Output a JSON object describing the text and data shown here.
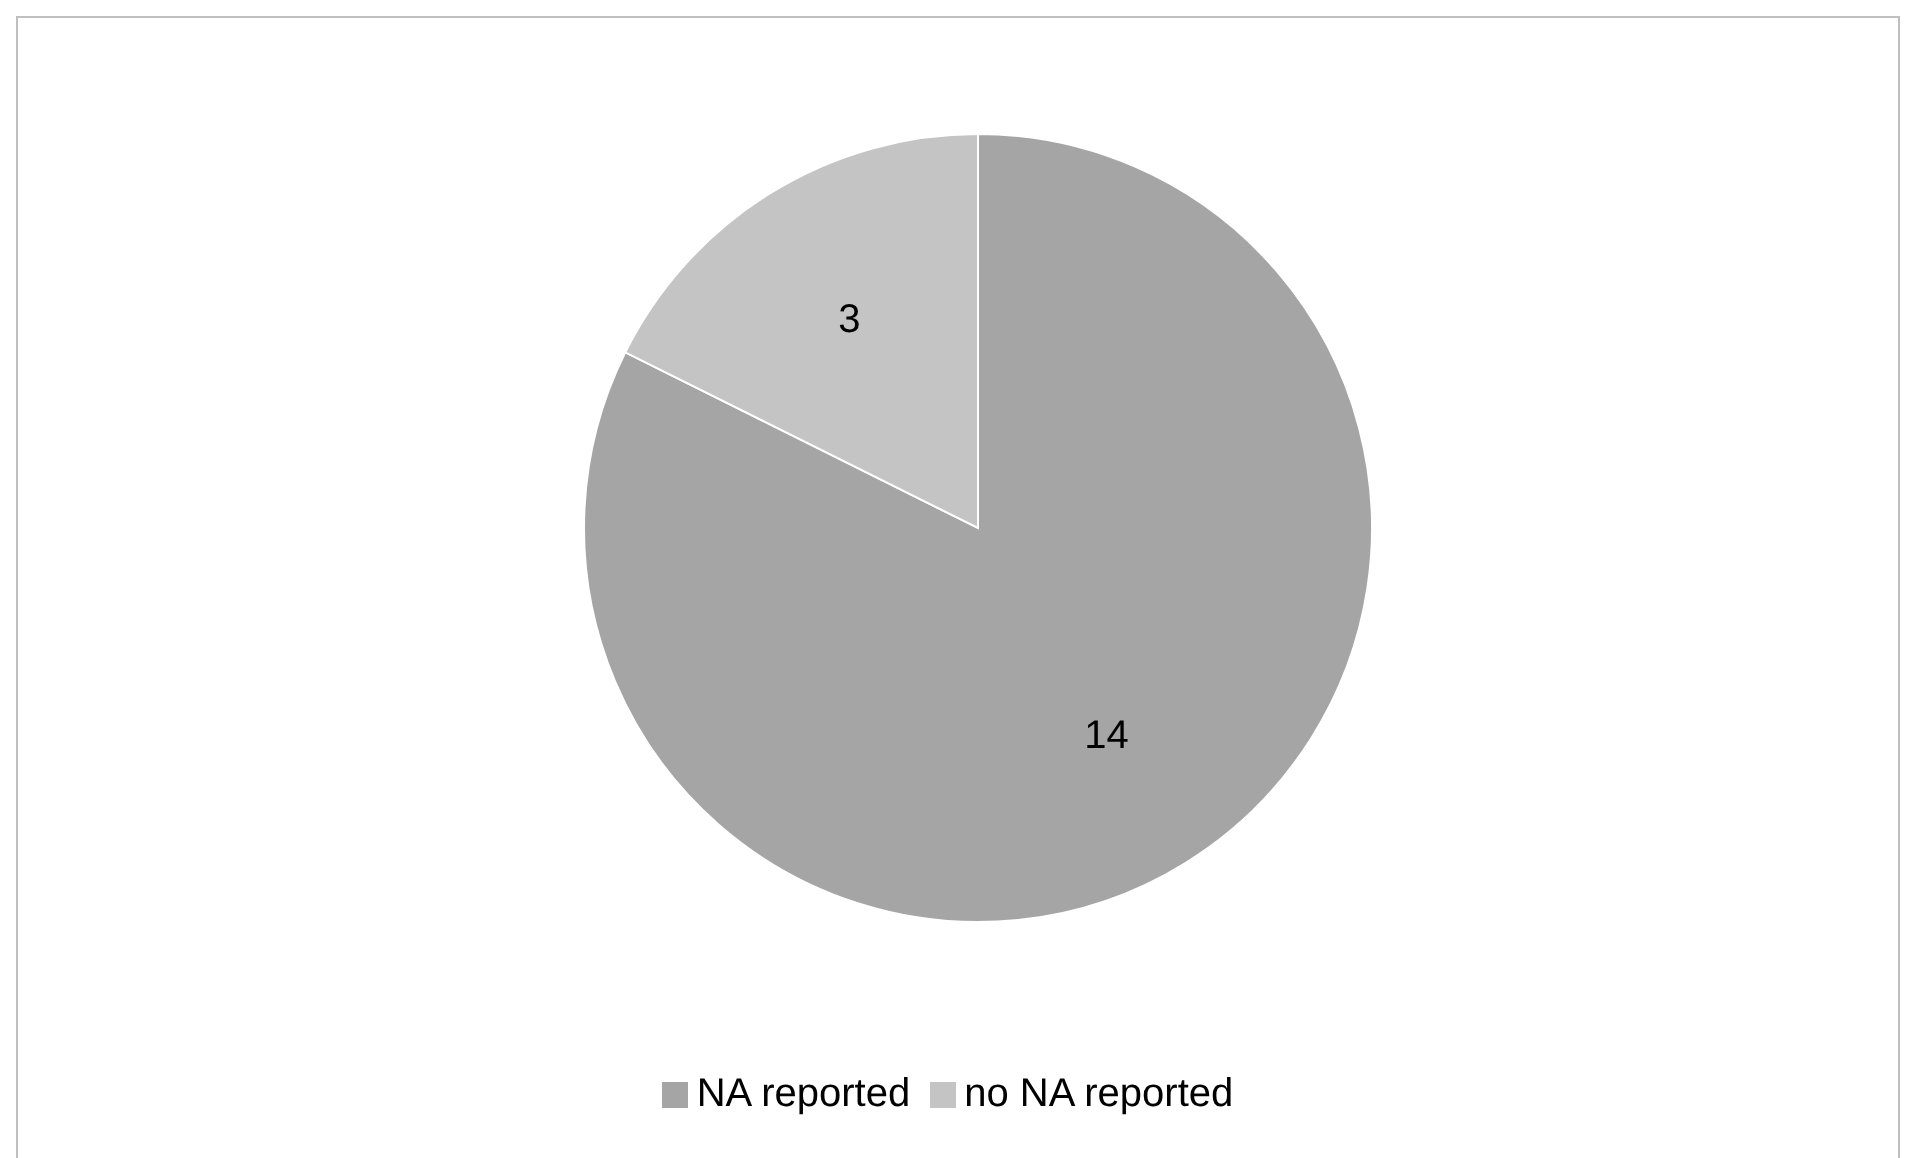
{
  "chart_data": {
    "type": "pie",
    "categories": [
      "NA reported",
      "no NA reported"
    ],
    "values": [
      14,
      3
    ],
    "colors": [
      "#a5a5a5",
      "#c4c4c4"
    ],
    "data_labels": true,
    "legend": "bottom"
  }
}
